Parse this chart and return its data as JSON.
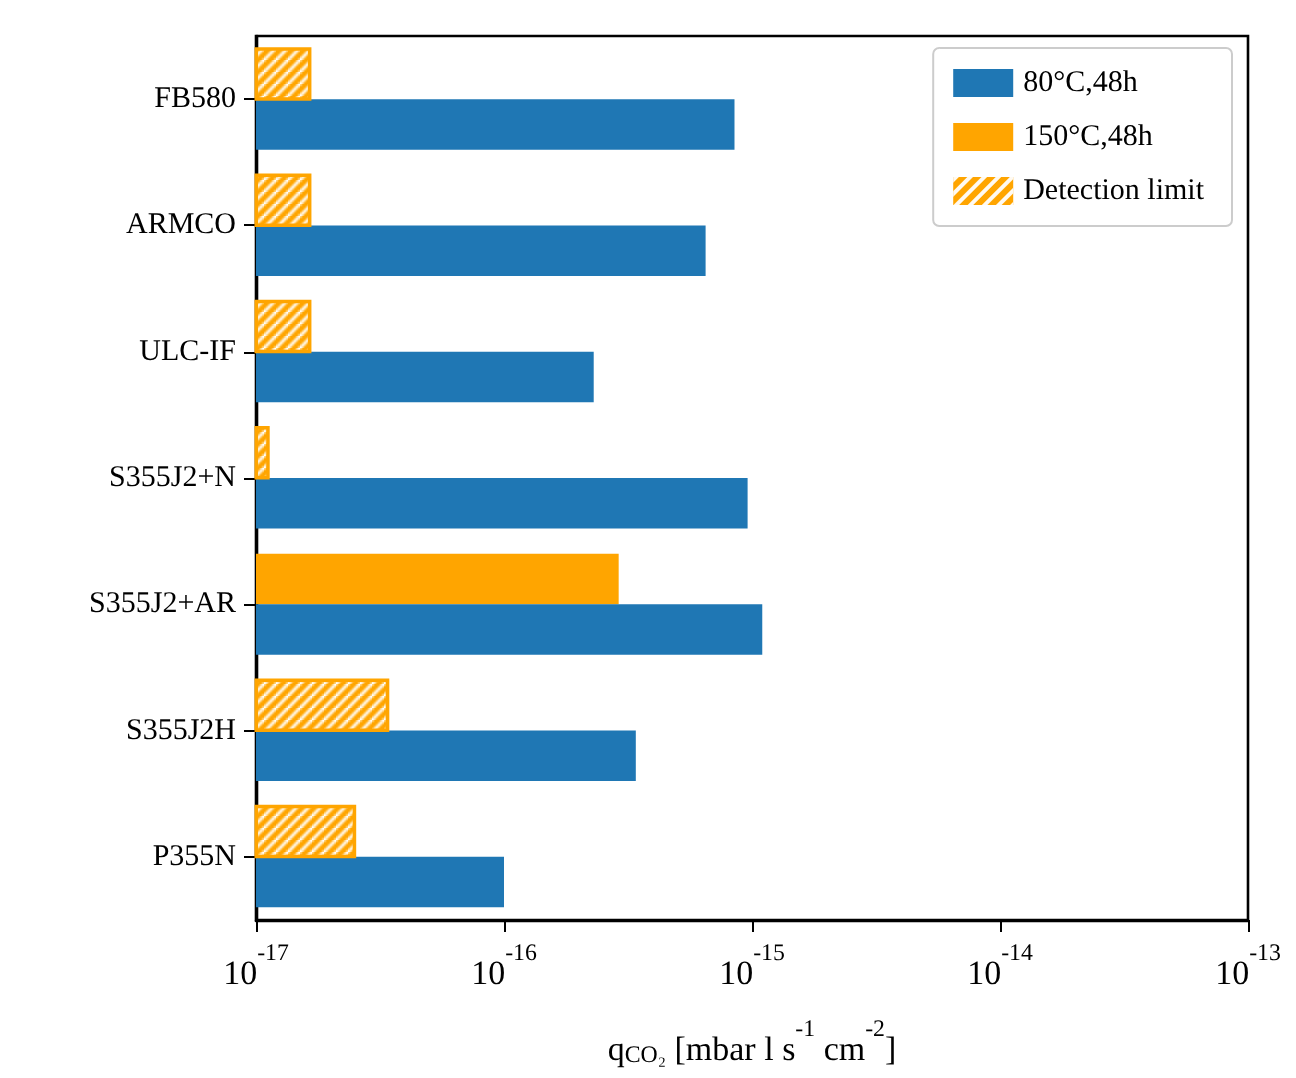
{
  "chart_data": {
    "type": "bar",
    "orientation": "horizontal",
    "xlabel": "q$_{CO₂}$ [mbar l s$^{-1}$ cm$^{-2}$]",
    "categories": [
      "FB580",
      "ARMCO",
      "ULC-IF",
      "S355J2+N",
      "S355J2+AR",
      "S355J2H",
      "P355N"
    ],
    "series": [
      {
        "name": "80°C,48h",
        "color": "#1f77b4",
        "values": [
          8.5e-16,
          6.5e-16,
          2.3e-16,
          9.6e-16,
          1.1e-15,
          3.4e-16,
          1e-16
        ]
      },
      {
        "name": "150°C,48h",
        "color": "#ffa500",
        "values": [
          null,
          null,
          null,
          null,
          2.9e-16,
          null,
          null
        ]
      },
      {
        "name": "Detection limit",
        "color": "#ffa500",
        "values": [
          1.65e-17,
          1.65e-17,
          1.65e-17,
          1.12e-17,
          null,
          3.4e-17,
          2.5e-17
        ]
      }
    ],
    "log": "x",
    "xlim": [
      1e-17,
      1e-13
    ],
    "xticks": [
      {
        "value": 1e-17,
        "label": "10$^{-17}$"
      },
      {
        "value": 1e-16,
        "label": "10$^{-16}$"
      },
      {
        "value": 1e-15,
        "label": "10$^{-15}$"
      },
      {
        "value": 1e-14,
        "label": "10$^{-14}$"
      },
      {
        "value": 1e-13,
        "label": "10$^{-13}$"
      }
    ],
    "grid": false,
    "legend": "top right"
  }
}
